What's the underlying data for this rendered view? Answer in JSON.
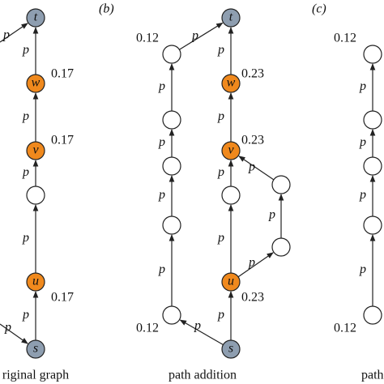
{
  "panel_labels": [
    "(b)",
    "(c)"
  ],
  "captions": [
    "riginal graph",
    "path addition",
    "path"
  ],
  "nodes": [
    "t",
    "w",
    "v",
    "u",
    "s",
    "t",
    "w",
    "v",
    "u",
    "s"
  ],
  "weights": [
    0.17,
    0.17,
    0.17,
    0.12,
    0.23,
    0.23,
    0.23,
    0.12,
    0.12,
    0.12
  ],
  "edge_labels": [
    "p",
    "p",
    "p",
    "p",
    "p",
    "p",
    "p",
    "p",
    "p",
    "p",
    "p",
    "p",
    "p",
    "p",
    "p",
    "p",
    "p",
    "p",
    "p",
    "p",
    "p",
    "p",
    "p",
    "p",
    "p"
  ]
}
